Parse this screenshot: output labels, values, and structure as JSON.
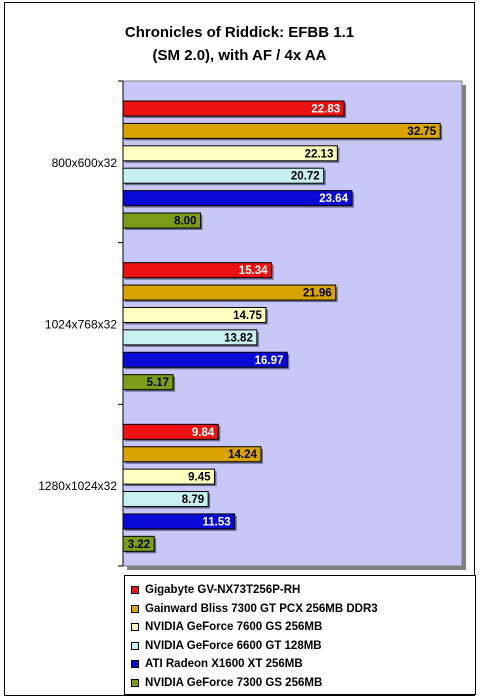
{
  "chart_data": {
    "type": "bar",
    "orientation": "horizontal",
    "title": "Chronicles of Riddick: EFBB 1.1",
    "subtitle": "(SM 2.0), with AF / 4x AA",
    "categories": [
      "800x600x32",
      "1024x768x32",
      "1280x1024x32"
    ],
    "series": [
      {
        "name": "Gigabyte GV-NX73T256P-RH",
        "color": "#ee1111",
        "label_color": "#ffffff",
        "values": [
          22.83,
          15.34,
          9.84
        ]
      },
      {
        "name": "Gainward Bliss 7300 GT PCX 256MB DDR3",
        "color": "#d9a300",
        "label_color": "#000000",
        "values": [
          32.75,
          21.96,
          14.24
        ]
      },
      {
        "name": "NVIDIA GeForce 7600 GS 256MB",
        "color": "#ffffbf",
        "label_color": "#000000",
        "values": [
          22.13,
          14.75,
          9.45
        ]
      },
      {
        "name": "NVIDIA GeForce 6600 GT 128MB",
        "color": "#c8f0f0",
        "label_color": "#000000",
        "values": [
          20.72,
          13.82,
          8.79
        ]
      },
      {
        "name": "ATI Radeon X1600 XT 256MB",
        "color": "#0a0ad6",
        "label_color": "#ffffff",
        "values": [
          23.64,
          16.97,
          11.53
        ]
      },
      {
        "name": "NVIDIA GeForce 7300 GS 256MB",
        "color": "#7a9e1a",
        "label_color": "#000000",
        "values": [
          8.0,
          5.17,
          3.22
        ]
      }
    ],
    "data_labels": [
      [
        "22.83",
        "15.34",
        "9.84"
      ],
      [
        "32.75",
        "21.96",
        "14.24"
      ],
      [
        "22.13",
        "14.75",
        "9.45"
      ],
      [
        "20.72",
        "13.82",
        "8.79"
      ],
      [
        "23.64",
        "16.97",
        "11.53"
      ],
      [
        "8.00",
        "5.17",
        "3.22"
      ]
    ],
    "xlim": [
      0,
      35
    ],
    "plot_background": "#c8c8f8",
    "grid": false,
    "legend_position": "bottom"
  }
}
